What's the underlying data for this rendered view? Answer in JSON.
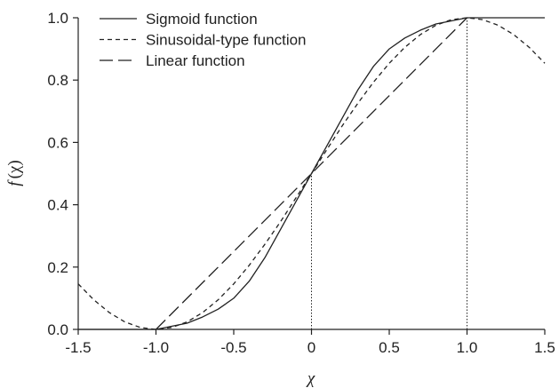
{
  "chart_data": {
    "type": "line",
    "title": "",
    "xlabel": "χ",
    "ylabel_prefix": "f",
    "ylabel_arg": "(χ)",
    "xlim": [
      -1.5,
      1.5
    ],
    "ylim": [
      0.0,
      1.0
    ],
    "xticks": [
      -1.5,
      -1.0,
      -0.5,
      0,
      0.5,
      1.0,
      1.5
    ],
    "xtick_labels": [
      "-1.5",
      "-1.0",
      "-0.5",
      "0",
      "0.5",
      "1.0",
      "1.5"
    ],
    "yticks": [
      0.0,
      0.2,
      0.4,
      0.6,
      0.8,
      1.0
    ],
    "ytick_labels": [
      "0.0",
      "0.2",
      "0.4",
      "0.6",
      "0.8",
      "1.0"
    ],
    "grid": false,
    "legend_position": "top-left",
    "series": [
      {
        "name": "Sigmoid function",
        "dash": "solid",
        "x": [
          -1.5,
          -1.2,
          -1.0,
          -0.9,
          -0.8,
          -0.7,
          -0.6,
          -0.5,
          -0.4,
          -0.3,
          -0.2,
          -0.1,
          0,
          0.1,
          0.2,
          0.3,
          0.4,
          0.5,
          0.6,
          0.7,
          0.8,
          0.9,
          1.0,
          1.1,
          1.2,
          1.3,
          1.4,
          1.5
        ],
        "y": [
          0.0,
          0.0,
          0.0,
          0.01,
          0.02,
          0.04,
          0.065,
          0.1,
          0.155,
          0.23,
          0.32,
          0.41,
          0.5,
          0.59,
          0.68,
          0.77,
          0.845,
          0.9,
          0.935,
          0.96,
          0.98,
          0.99,
          1.0,
          1.0,
          1.0,
          1.0,
          1.0,
          1.0
        ]
      },
      {
        "name": "Sinusoidal-type function",
        "dash": "short-dash",
        "x": [
          -1.5,
          -1.4,
          -1.3,
          -1.2,
          -1.1,
          -1.0,
          -0.9,
          -0.8,
          -0.7,
          -0.6,
          -0.5,
          -0.4,
          -0.3,
          -0.2,
          -0.1,
          0,
          0.1,
          0.2,
          0.3,
          0.4,
          0.5,
          0.6,
          0.7,
          0.8,
          0.9,
          1.0,
          1.1,
          1.2,
          1.3,
          1.4,
          1.5
        ],
        "y": [
          0.146,
          0.095,
          0.054,
          0.024,
          0.006,
          0.0,
          0.006,
          0.024,
          0.054,
          0.095,
          0.146,
          0.206,
          0.273,
          0.345,
          0.422,
          0.5,
          0.578,
          0.655,
          0.727,
          0.794,
          0.854,
          0.905,
          0.946,
          0.976,
          0.994,
          1.0,
          0.994,
          0.976,
          0.946,
          0.905,
          0.854
        ]
      },
      {
        "name": "Linear function",
        "dash": "long-dash",
        "x": [
          -1.0,
          1.0
        ],
        "y": [
          0.0,
          1.0
        ]
      }
    ],
    "reference_lines": [
      {
        "x": 0,
        "y_to": 0.5,
        "style": "dotted"
      },
      {
        "x": 1.0,
        "y_to": 1.0,
        "style": "dotted"
      }
    ]
  }
}
